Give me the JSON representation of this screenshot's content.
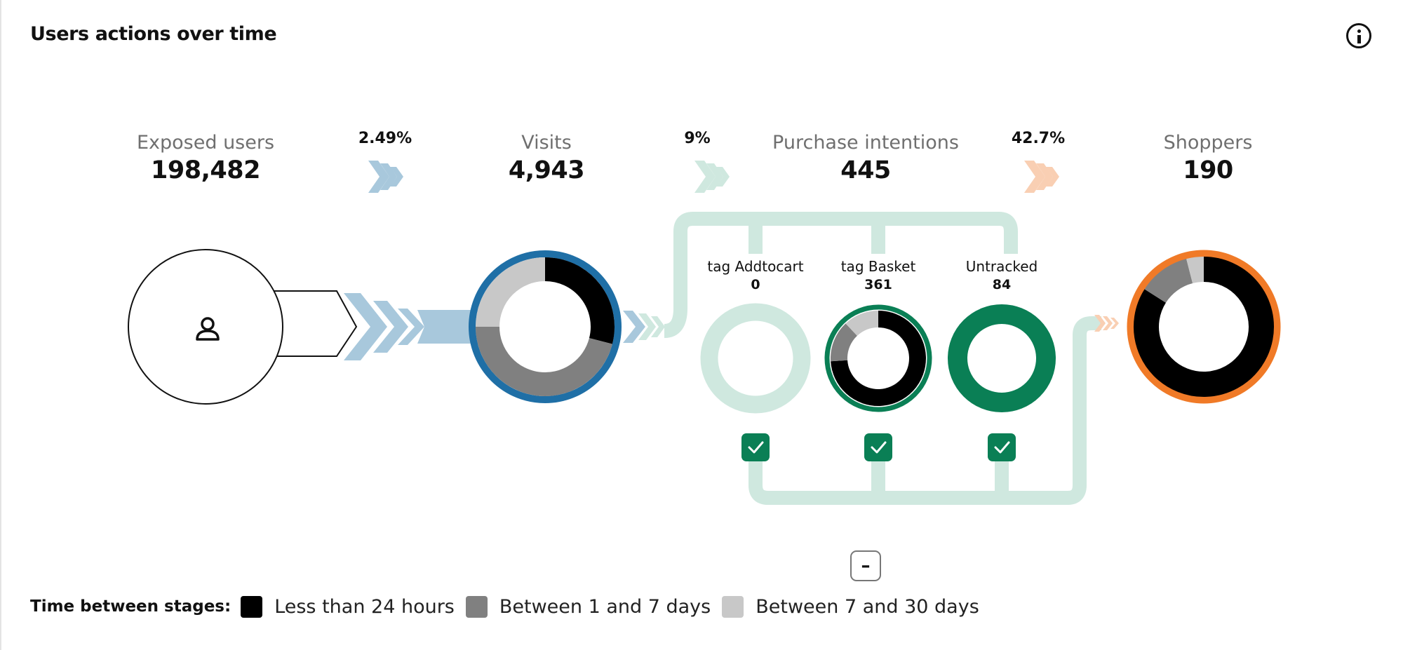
{
  "title": "Users actions over time",
  "stages": [
    {
      "label": "Exposed users",
      "value": "198,482"
    },
    {
      "label": "Visits",
      "value": "4,943"
    },
    {
      "label": "Purchase intentions",
      "value": "445"
    },
    {
      "label": "Shoppers",
      "value": "190"
    }
  ],
  "conversion_rates": [
    "2.49%",
    "9%",
    "42.7%"
  ],
  "intention_sources": [
    {
      "label": "tag Addtocart",
      "value": "0",
      "checked": true
    },
    {
      "label": "tag Basket",
      "value": "361",
      "checked": true
    },
    {
      "label": "Untracked",
      "value": "84",
      "checked": true
    }
  ],
  "collapse_button": "–",
  "legend": {
    "title": "Time between stages:",
    "items": [
      {
        "label": "Less than 24 hours",
        "color": "#000000"
      },
      {
        "label": "Between 1 and 7 days",
        "color": "#808080"
      },
      {
        "label": "Between 7 and 30 days",
        "color": "#c8c8c8"
      }
    ]
  },
  "colors": {
    "visits_ring": "#1f6fa6",
    "visits_arrows": "#a8c8dc",
    "intention_arrows": "#cfe8df",
    "intention_track": "#cfe8df",
    "intention_ring": "#0a7f55",
    "shoppers_ring": "#f07a27",
    "shoppers_arrows": "#f9cfb3"
  },
  "donuts": {
    "visits": [
      0.29,
      0.46,
      0.25
    ],
    "basket": [
      0.74,
      0.14,
      0.12
    ],
    "shoppers": [
      0.84,
      0.12,
      0.04
    ]
  },
  "icons": {
    "info": "info-icon",
    "user": "user-icon",
    "check": "check-icon"
  }
}
